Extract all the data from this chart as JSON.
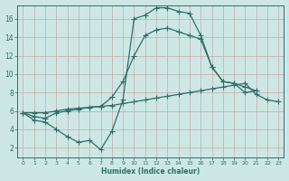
{
  "xlabel": "Humidex (Indice chaleur)",
  "bg_color": "#cde8e4",
  "grid_color": "#c0ddd8",
  "line_color": "#2e6e6a",
  "xlim": [
    -0.5,
    23.5
  ],
  "ylim": [
    1,
    17.5
  ],
  "yticks": [
    2,
    4,
    6,
    8,
    10,
    12,
    14,
    16
  ],
  "xticks": [
    0,
    1,
    2,
    3,
    4,
    5,
    6,
    7,
    8,
    9,
    10,
    11,
    12,
    13,
    14,
    15,
    16,
    17,
    18,
    19,
    20,
    21,
    22,
    23
  ],
  "line1_x": [
    0,
    1,
    2,
    3,
    4,
    5,
    6,
    7,
    8,
    9,
    10,
    11,
    12,
    13,
    14,
    15,
    16,
    17,
    18,
    19,
    20,
    21
  ],
  "line1_y": [
    5.8,
    5.0,
    4.8,
    4.0,
    3.2,
    2.6,
    2.8,
    1.8,
    3.8,
    7.2,
    16.0,
    16.4,
    17.2,
    17.2,
    16.8,
    16.6,
    14.2,
    10.8,
    9.2,
    9.0,
    8.6,
    8.2
  ],
  "line2_x": [
    0,
    1,
    2,
    3,
    4,
    5,
    6,
    7,
    8,
    9,
    10,
    11,
    12,
    13,
    14,
    15,
    16,
    17,
    18,
    19,
    20,
    21,
    22,
    23
  ],
  "line2_y": [
    5.8,
    5.8,
    5.8,
    6.0,
    6.2,
    6.3,
    6.4,
    6.5,
    6.6,
    6.8,
    7.0,
    7.2,
    7.4,
    7.6,
    7.8,
    8.0,
    8.2,
    8.4,
    8.6,
    8.8,
    9.0,
    7.8,
    7.2,
    7.0
  ],
  "line3_x": [
    0,
    1,
    2,
    3,
    4,
    5,
    6,
    7,
    8,
    9,
    10,
    11,
    12,
    13,
    14,
    15,
    16,
    17,
    18,
    19,
    20,
    21
  ],
  "line3_y": [
    5.8,
    5.4,
    5.2,
    5.8,
    6.0,
    6.2,
    6.4,
    6.5,
    7.5,
    9.2,
    12.0,
    14.2,
    14.8,
    15.0,
    14.6,
    14.2,
    13.8,
    10.8,
    9.2,
    9.0,
    8.0,
    8.2
  ]
}
